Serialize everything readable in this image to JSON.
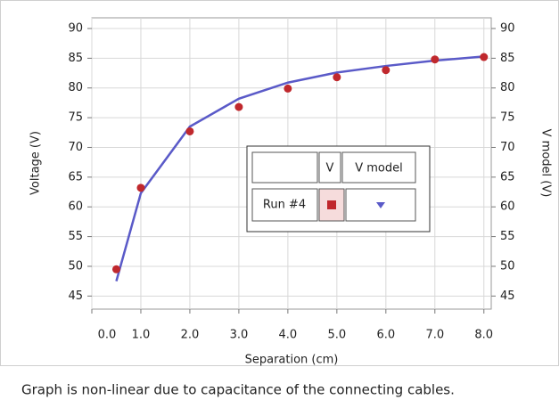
{
  "chart_data": {
    "type": "scatter-line",
    "x_label": "Separation (cm)",
    "y_label": "Voltage (V)",
    "y2_label": "V model (V)",
    "x": [
      0.5,
      1.0,
      2.0,
      3.0,
      4.0,
      5.0,
      6.0,
      7.0,
      8.0
    ],
    "series": [
      {
        "name": "V",
        "color": "#c0282d",
        "mark": "dot",
        "values": [
          49.5,
          63.2,
          72.7,
          76.8,
          79.9,
          81.8,
          83.0,
          84.8,
          85.2
        ]
      },
      {
        "name": "V model",
        "color": "#5a5ac8",
        "mark": "line",
        "axis": "y2",
        "values": [
          47.5,
          62.3,
          73.5,
          78.2,
          80.9,
          82.6,
          83.7,
          84.6,
          85.3
        ]
      }
    ],
    "legend_row_label": "Run #4",
    "xlim": [
      0,
      8.15
    ],
    "xticks": [
      {
        "value": 0,
        "label": "0.0"
      },
      {
        "value": 1,
        "label": "1.0"
      },
      {
        "value": 2,
        "label": "2.0"
      },
      {
        "value": 3,
        "label": "3.0"
      },
      {
        "value": 4,
        "label": "4.0"
      },
      {
        "value": 5,
        "label": "5.0"
      },
      {
        "value": 6,
        "label": "6.0"
      },
      {
        "value": 7,
        "label": "7.0"
      },
      {
        "value": 8,
        "label": "8.0"
      }
    ],
    "ylim": [
      42.8,
      91.8
    ],
    "yticks": [
      45,
      50,
      55,
      60,
      65,
      70,
      75,
      80,
      85,
      90
    ],
    "y2lim": [
      42.8,
      91.8
    ],
    "y2ticks": [
      45,
      50,
      55,
      60,
      65,
      70,
      75,
      80,
      85,
      90
    ],
    "grid": true,
    "caption": "Graph is non-linear due to capacitance of the connecting cables."
  }
}
